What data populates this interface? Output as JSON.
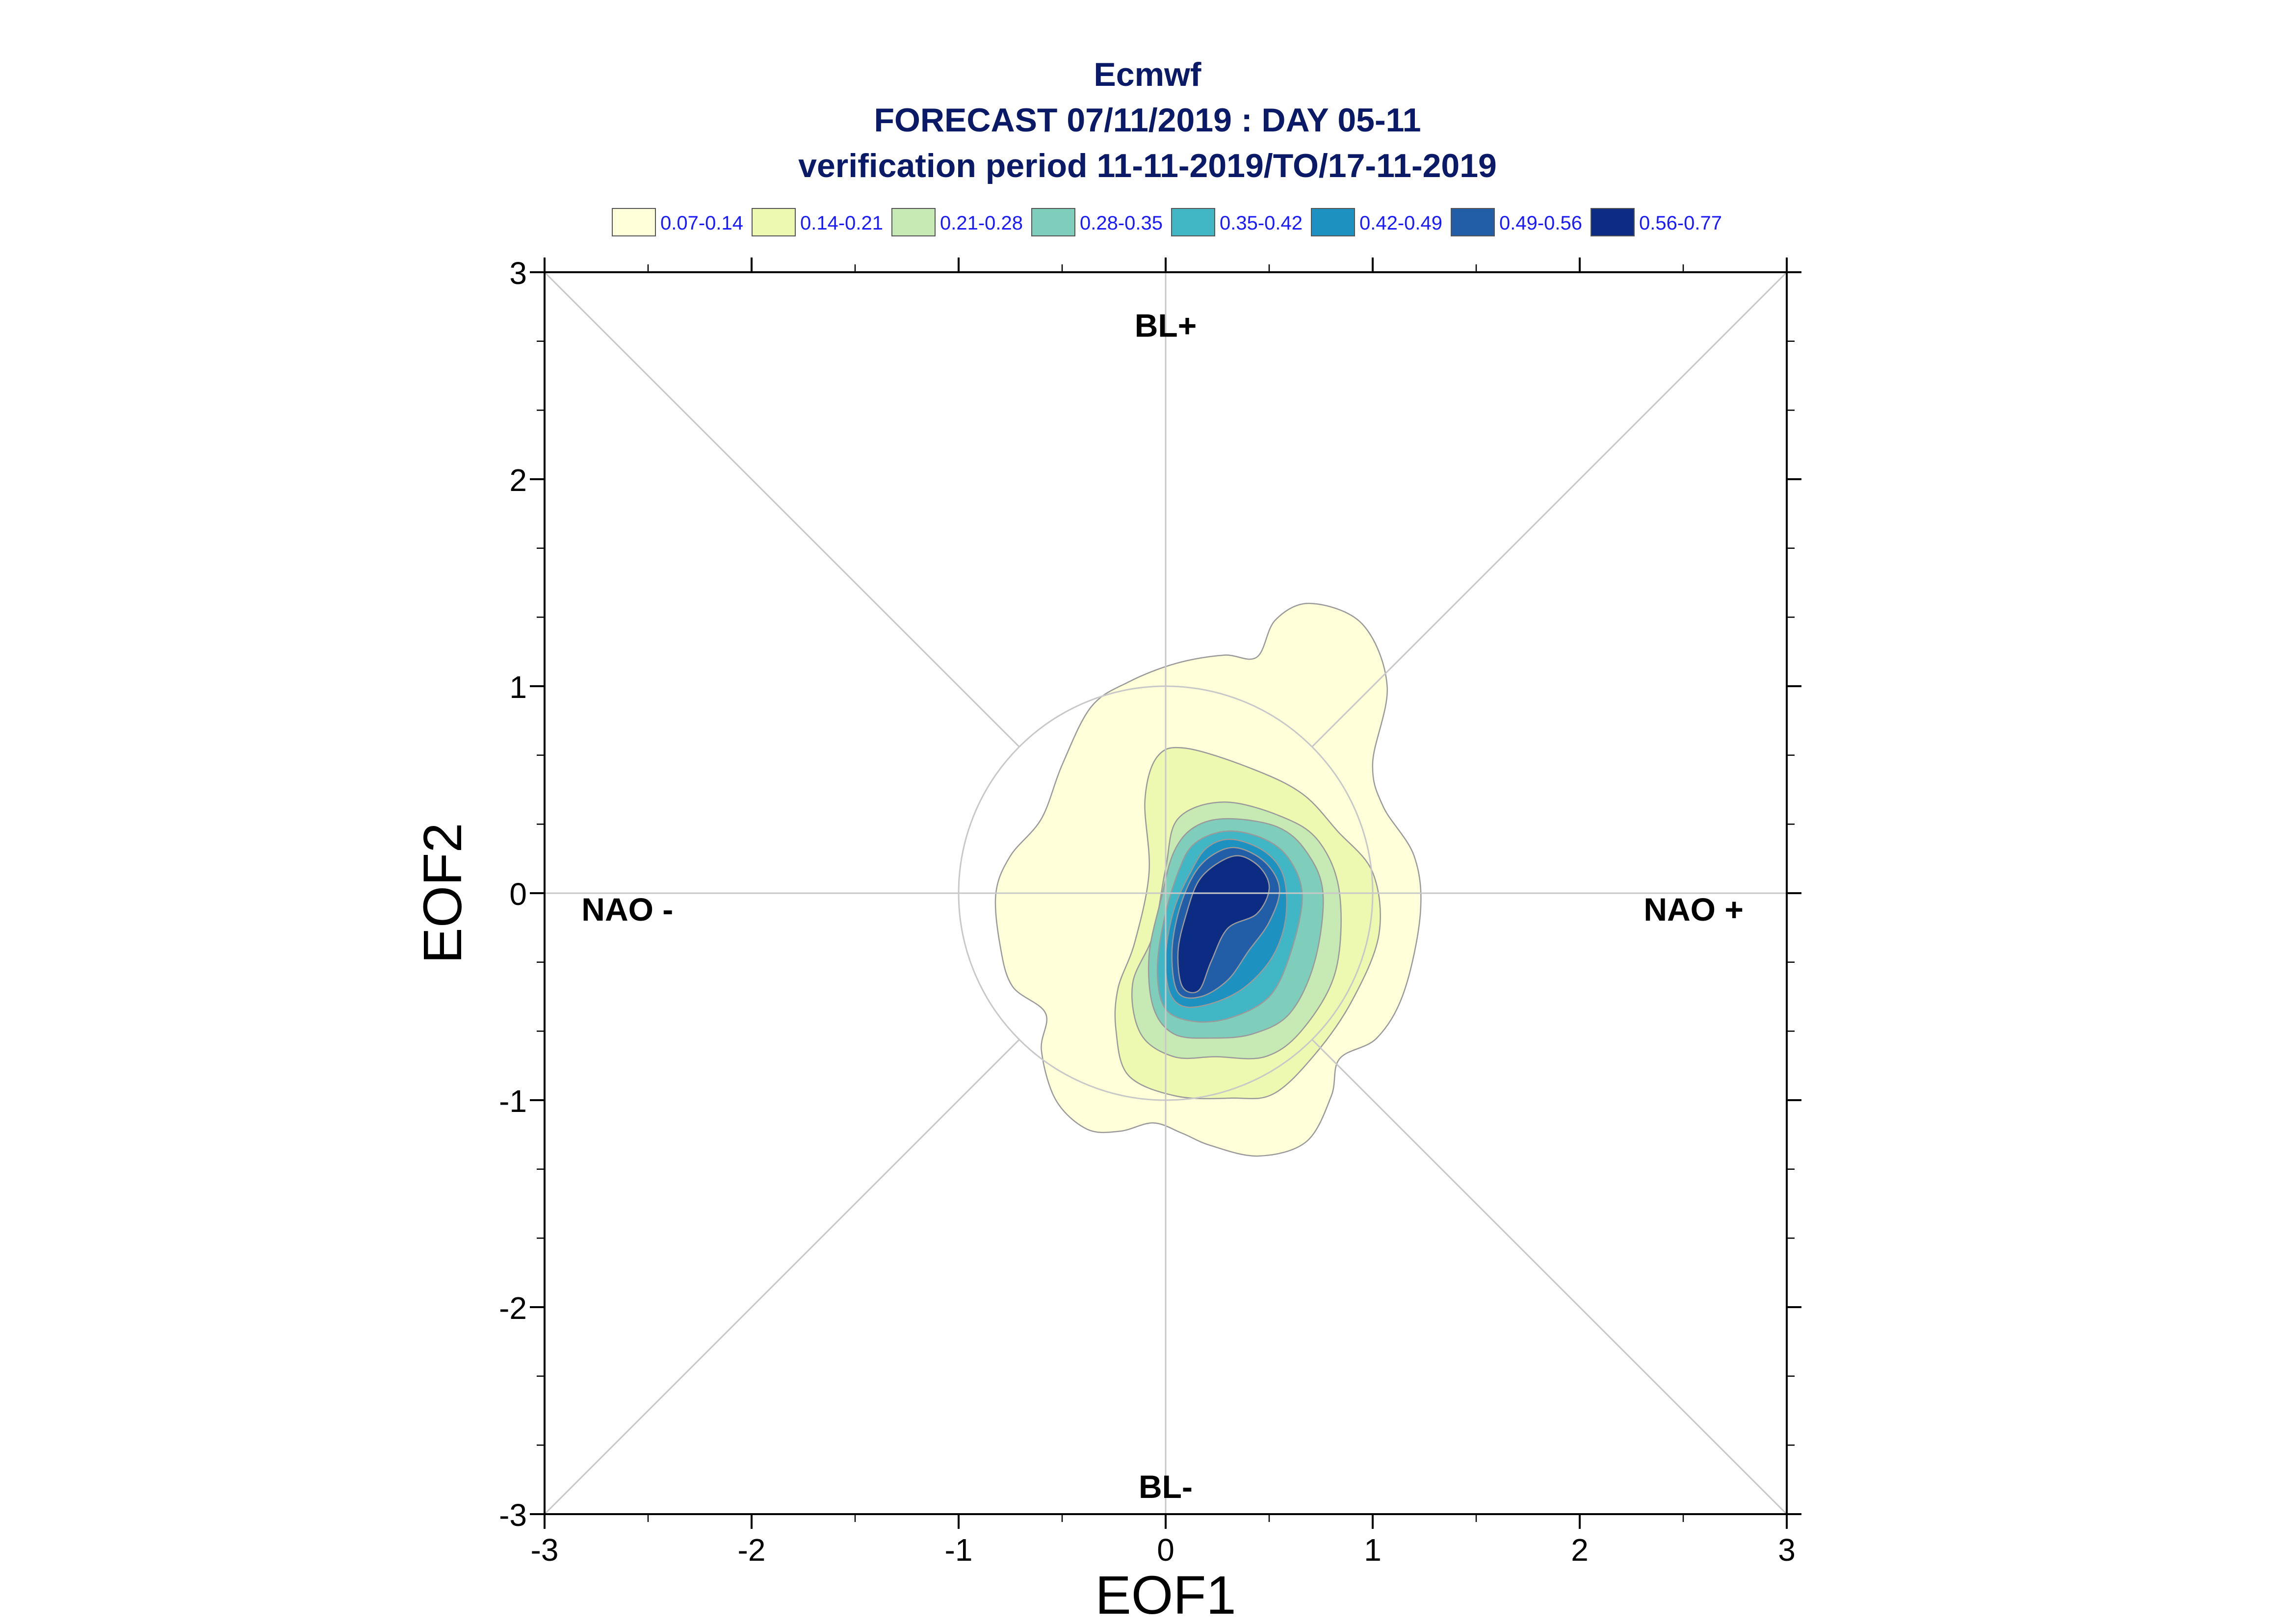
{
  "chart_data": {
    "type": "contour",
    "title": "Ecmwf",
    "subtitle_lines": [
      "FORECAST 07/11/2019 : DAY 05-11",
      "verification period 11-11-2019/TO/17-11-2019"
    ],
    "xlabel": "EOF1",
    "ylabel": "EOF2",
    "xlim": [
      -3,
      3
    ],
    "ylim": [
      -3,
      3
    ],
    "x_ticks": [
      -3,
      -2,
      -1,
      0,
      1,
      2,
      3
    ],
    "y_ticks": [
      -3,
      -2,
      -1,
      0,
      1,
      2,
      3
    ],
    "x_tick_labels": [
      "-3",
      "-2",
      "-1",
      "0",
      "1",
      "2",
      "3"
    ],
    "y_tick_labels": [
      "-3",
      "-2",
      "-1",
      "0",
      "1",
      "2",
      "3"
    ],
    "regions": [
      {
        "label": "BL+",
        "x": 0,
        "y": 2.74
      },
      {
        "label": "BL-",
        "x": 0,
        "y": -2.87
      },
      {
        "label": "NAO -",
        "x": -2.6,
        "y": -0.08
      },
      {
        "label": "NAO +",
        "x": 2.55,
        "y": -0.08
      }
    ],
    "reference_circle_radius": 1,
    "grid": false,
    "legend": {
      "placement": "top",
      "entries": [
        {
          "label": "0.07-0.14",
          "color": "#ffffd9"
        },
        {
          "label": "0.14-0.21",
          "color": "#edf8b1"
        },
        {
          "label": "0.21-0.28",
          "color": "#c7e9b4"
        },
        {
          "label": "0.28-0.35",
          "color": "#7fcdbb"
        },
        {
          "label": "0.35-0.42",
          "color": "#41b6c4"
        },
        {
          "label": "0.42-0.49",
          "color": "#1d91c0"
        },
        {
          "label": "0.49-0.56",
          "color": "#225ea8"
        },
        {
          "label": "0.56-0.77",
          "color": "#0c2c84"
        }
      ]
    },
    "contour_levels": [
      {
        "level": "0.07-0.14",
        "color": "#ffffd9",
        "polygon": [
          [
            0.7,
            1.4
          ],
          [
            0.95,
            1.3
          ],
          [
            1.07,
            1.0
          ],
          [
            1.0,
            0.63
          ],
          [
            1.05,
            0.42
          ],
          [
            1.2,
            0.18
          ],
          [
            1.23,
            -0.1
          ],
          [
            1.15,
            -0.48
          ],
          [
            1.02,
            -0.7
          ],
          [
            0.84,
            -0.8
          ],
          [
            0.8,
            -0.98
          ],
          [
            0.68,
            -1.2
          ],
          [
            0.45,
            -1.27
          ],
          [
            0.22,
            -1.22
          ],
          [
            0.08,
            -1.16
          ],
          [
            -0.06,
            -1.11
          ],
          [
            -0.22,
            -1.15
          ],
          [
            -0.38,
            -1.14
          ],
          [
            -0.53,
            -1.0
          ],
          [
            -0.6,
            -0.76
          ],
          [
            -0.58,
            -0.58
          ],
          [
            -0.74,
            -0.45
          ],
          [
            -0.8,
            -0.25
          ],
          [
            -0.82,
            0.0
          ],
          [
            -0.75,
            0.18
          ],
          [
            -0.6,
            0.36
          ],
          [
            -0.5,
            0.62
          ],
          [
            -0.36,
            0.9
          ],
          [
            -0.18,
            1.02
          ],
          [
            0.05,
            1.11
          ],
          [
            0.28,
            1.15
          ],
          [
            0.44,
            1.14
          ],
          [
            0.53,
            1.32
          ]
        ]
      },
      {
        "level": "0.14-0.21",
        "color": "#edf8b1",
        "polygon": [
          [
            0.1,
            0.7
          ],
          [
            0.42,
            0.6
          ],
          [
            0.66,
            0.48
          ],
          [
            0.83,
            0.3
          ],
          [
            1.0,
            0.1
          ],
          [
            1.03,
            -0.2
          ],
          [
            0.9,
            -0.52
          ],
          [
            0.72,
            -0.78
          ],
          [
            0.52,
            -0.97
          ],
          [
            0.32,
            -0.99
          ],
          [
            0.05,
            -0.98
          ],
          [
            -0.18,
            -0.88
          ],
          [
            -0.24,
            -0.66
          ],
          [
            -0.23,
            -0.46
          ],
          [
            -0.15,
            -0.24
          ],
          [
            -0.08,
            0.1
          ],
          [
            -0.1,
            0.45
          ],
          [
            -0.04,
            0.66
          ]
        ]
      },
      {
        "level": "0.21-0.28",
        "color": "#c7e9b4",
        "polygon": [
          [
            0.28,
            0.44
          ],
          [
            0.56,
            0.37
          ],
          [
            0.74,
            0.25
          ],
          [
            0.84,
            0.0
          ],
          [
            0.82,
            -0.38
          ],
          [
            0.66,
            -0.66
          ],
          [
            0.48,
            -0.79
          ],
          [
            0.24,
            -0.79
          ],
          [
            0.04,
            -0.79
          ],
          [
            -0.12,
            -0.68
          ],
          [
            -0.16,
            -0.44
          ],
          [
            -0.06,
            -0.2
          ],
          [
            0.0,
            0.12
          ],
          [
            0.06,
            0.36
          ]
        ]
      },
      {
        "level": "0.28-0.35",
        "color": "#7fcdbb",
        "polygon": [
          [
            0.3,
            0.36
          ],
          [
            0.54,
            0.32
          ],
          [
            0.68,
            0.2
          ],
          [
            0.76,
            0.0
          ],
          [
            0.72,
            -0.33
          ],
          [
            0.6,
            -0.58
          ],
          [
            0.42,
            -0.68
          ],
          [
            0.22,
            -0.7
          ],
          [
            0.04,
            -0.68
          ],
          [
            -0.06,
            -0.55
          ],
          [
            -0.08,
            -0.3
          ],
          [
            -0.02,
            -0.02
          ],
          [
            0.04,
            0.2
          ],
          [
            0.14,
            0.32
          ]
        ]
      },
      {
        "level": "0.35-0.42",
        "color": "#41b6c4",
        "polygon": [
          [
            0.3,
            0.3
          ],
          [
            0.48,
            0.26
          ],
          [
            0.6,
            0.16
          ],
          [
            0.66,
            -0.02
          ],
          [
            0.6,
            -0.3
          ],
          [
            0.5,
            -0.5
          ],
          [
            0.32,
            -0.6
          ],
          [
            0.14,
            -0.62
          ],
          [
            0.0,
            -0.56
          ],
          [
            -0.04,
            -0.38
          ],
          [
            -0.01,
            -0.14
          ],
          [
            0.06,
            0.1
          ],
          [
            0.14,
            0.24
          ]
        ]
      },
      {
        "level": "0.42-0.49",
        "color": "#1d91c0",
        "polygon": [
          [
            0.32,
            0.26
          ],
          [
            0.48,
            0.2
          ],
          [
            0.57,
            0.08
          ],
          [
            0.58,
            -0.12
          ],
          [
            0.52,
            -0.3
          ],
          [
            0.4,
            -0.44
          ],
          [
            0.26,
            -0.52
          ],
          [
            0.1,
            -0.55
          ],
          [
            0.02,
            -0.48
          ],
          [
            0.0,
            -0.3
          ],
          [
            0.04,
            -0.08
          ],
          [
            0.12,
            0.1
          ],
          [
            0.2,
            0.22
          ]
        ]
      },
      {
        "level": "0.49-0.56",
        "color": "#225ea8",
        "polygon": [
          [
            0.34,
            0.22
          ],
          [
            0.48,
            0.15
          ],
          [
            0.55,
            0.02
          ],
          [
            0.5,
            -0.14
          ],
          [
            0.4,
            -0.28
          ],
          [
            0.3,
            -0.42
          ],
          [
            0.17,
            -0.5
          ],
          [
            0.06,
            -0.48
          ],
          [
            0.03,
            -0.3
          ],
          [
            0.06,
            -0.1
          ],
          [
            0.13,
            0.08
          ],
          [
            0.22,
            0.18
          ]
        ]
      },
      {
        "level": "0.56-0.77",
        "color": "#0c2c84",
        "polygon": [
          [
            0.36,
            0.18
          ],
          [
            0.46,
            0.12
          ],
          [
            0.5,
            0.02
          ],
          [
            0.44,
            -0.1
          ],
          [
            0.3,
            -0.17
          ],
          [
            0.22,
            -0.33
          ],
          [
            0.16,
            -0.47
          ],
          [
            0.08,
            -0.45
          ],
          [
            0.06,
            -0.28
          ],
          [
            0.1,
            -0.1
          ],
          [
            0.16,
            0.06
          ],
          [
            0.26,
            0.15
          ]
        ]
      }
    ]
  }
}
